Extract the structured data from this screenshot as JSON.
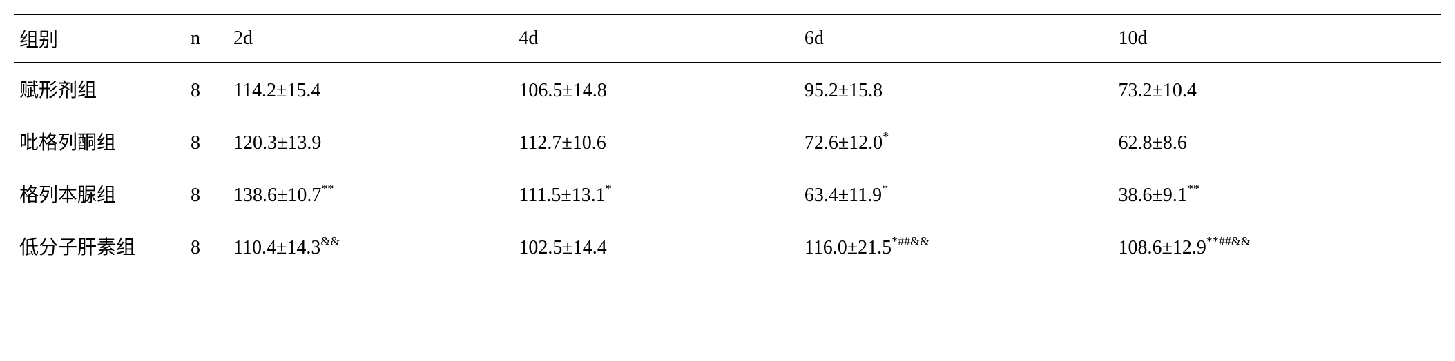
{
  "table": {
    "type": "table",
    "background_color": "#ffffff",
    "text_color": "#000000",
    "border_color": "#000000",
    "font_size": 28,
    "sup_font_size": 18,
    "columns": [
      {
        "key": "group",
        "label": "组别",
        "width_pct": 12
      },
      {
        "key": "n",
        "label": "n",
        "width_pct": 3
      },
      {
        "key": "d2",
        "label": "2d",
        "width_pct": 20
      },
      {
        "key": "d4",
        "label": "4d",
        "width_pct": 20
      },
      {
        "key": "d6",
        "label": "6d",
        "width_pct": 22
      },
      {
        "key": "d10",
        "label": "10d",
        "width_pct": 23
      }
    ],
    "rows": [
      {
        "group": "赋形剂组",
        "n": "8",
        "d2": {
          "value": "114.2±15.4",
          "sup": ""
        },
        "d4": {
          "value": "106.5±14.8",
          "sup": ""
        },
        "d6": {
          "value": "95.2±15.8",
          "sup": ""
        },
        "d10": {
          "value": "73.2±10.4",
          "sup": ""
        }
      },
      {
        "group": "吡格列酮组",
        "n": "8",
        "d2": {
          "value": "120.3±13.9",
          "sup": ""
        },
        "d4": {
          "value": "112.7±10.6",
          "sup": ""
        },
        "d6": {
          "value": "72.6±12.0",
          "sup": "*"
        },
        "d10": {
          "value": "62.8±8.6",
          "sup": ""
        }
      },
      {
        "group": "格列本脲组",
        "n": "8",
        "d2": {
          "value": "138.6±10.7",
          "sup": "**"
        },
        "d4": {
          "value": "111.5±13.1",
          "sup": "*"
        },
        "d6": {
          "value": "63.4±11.9",
          "sup": "*"
        },
        "d10": {
          "value": "38.6±9.1",
          "sup": "**"
        }
      },
      {
        "group": "低分子肝素组",
        "n": "8",
        "d2": {
          "value": "110.4±14.3",
          "sup": "&&"
        },
        "d4": {
          "value": "102.5±14.4",
          "sup": ""
        },
        "d6": {
          "value": "116.0±21.5",
          "sup": "*##&&"
        },
        "d10": {
          "value": "108.6±12.9",
          "sup": "**##&&"
        }
      }
    ]
  }
}
